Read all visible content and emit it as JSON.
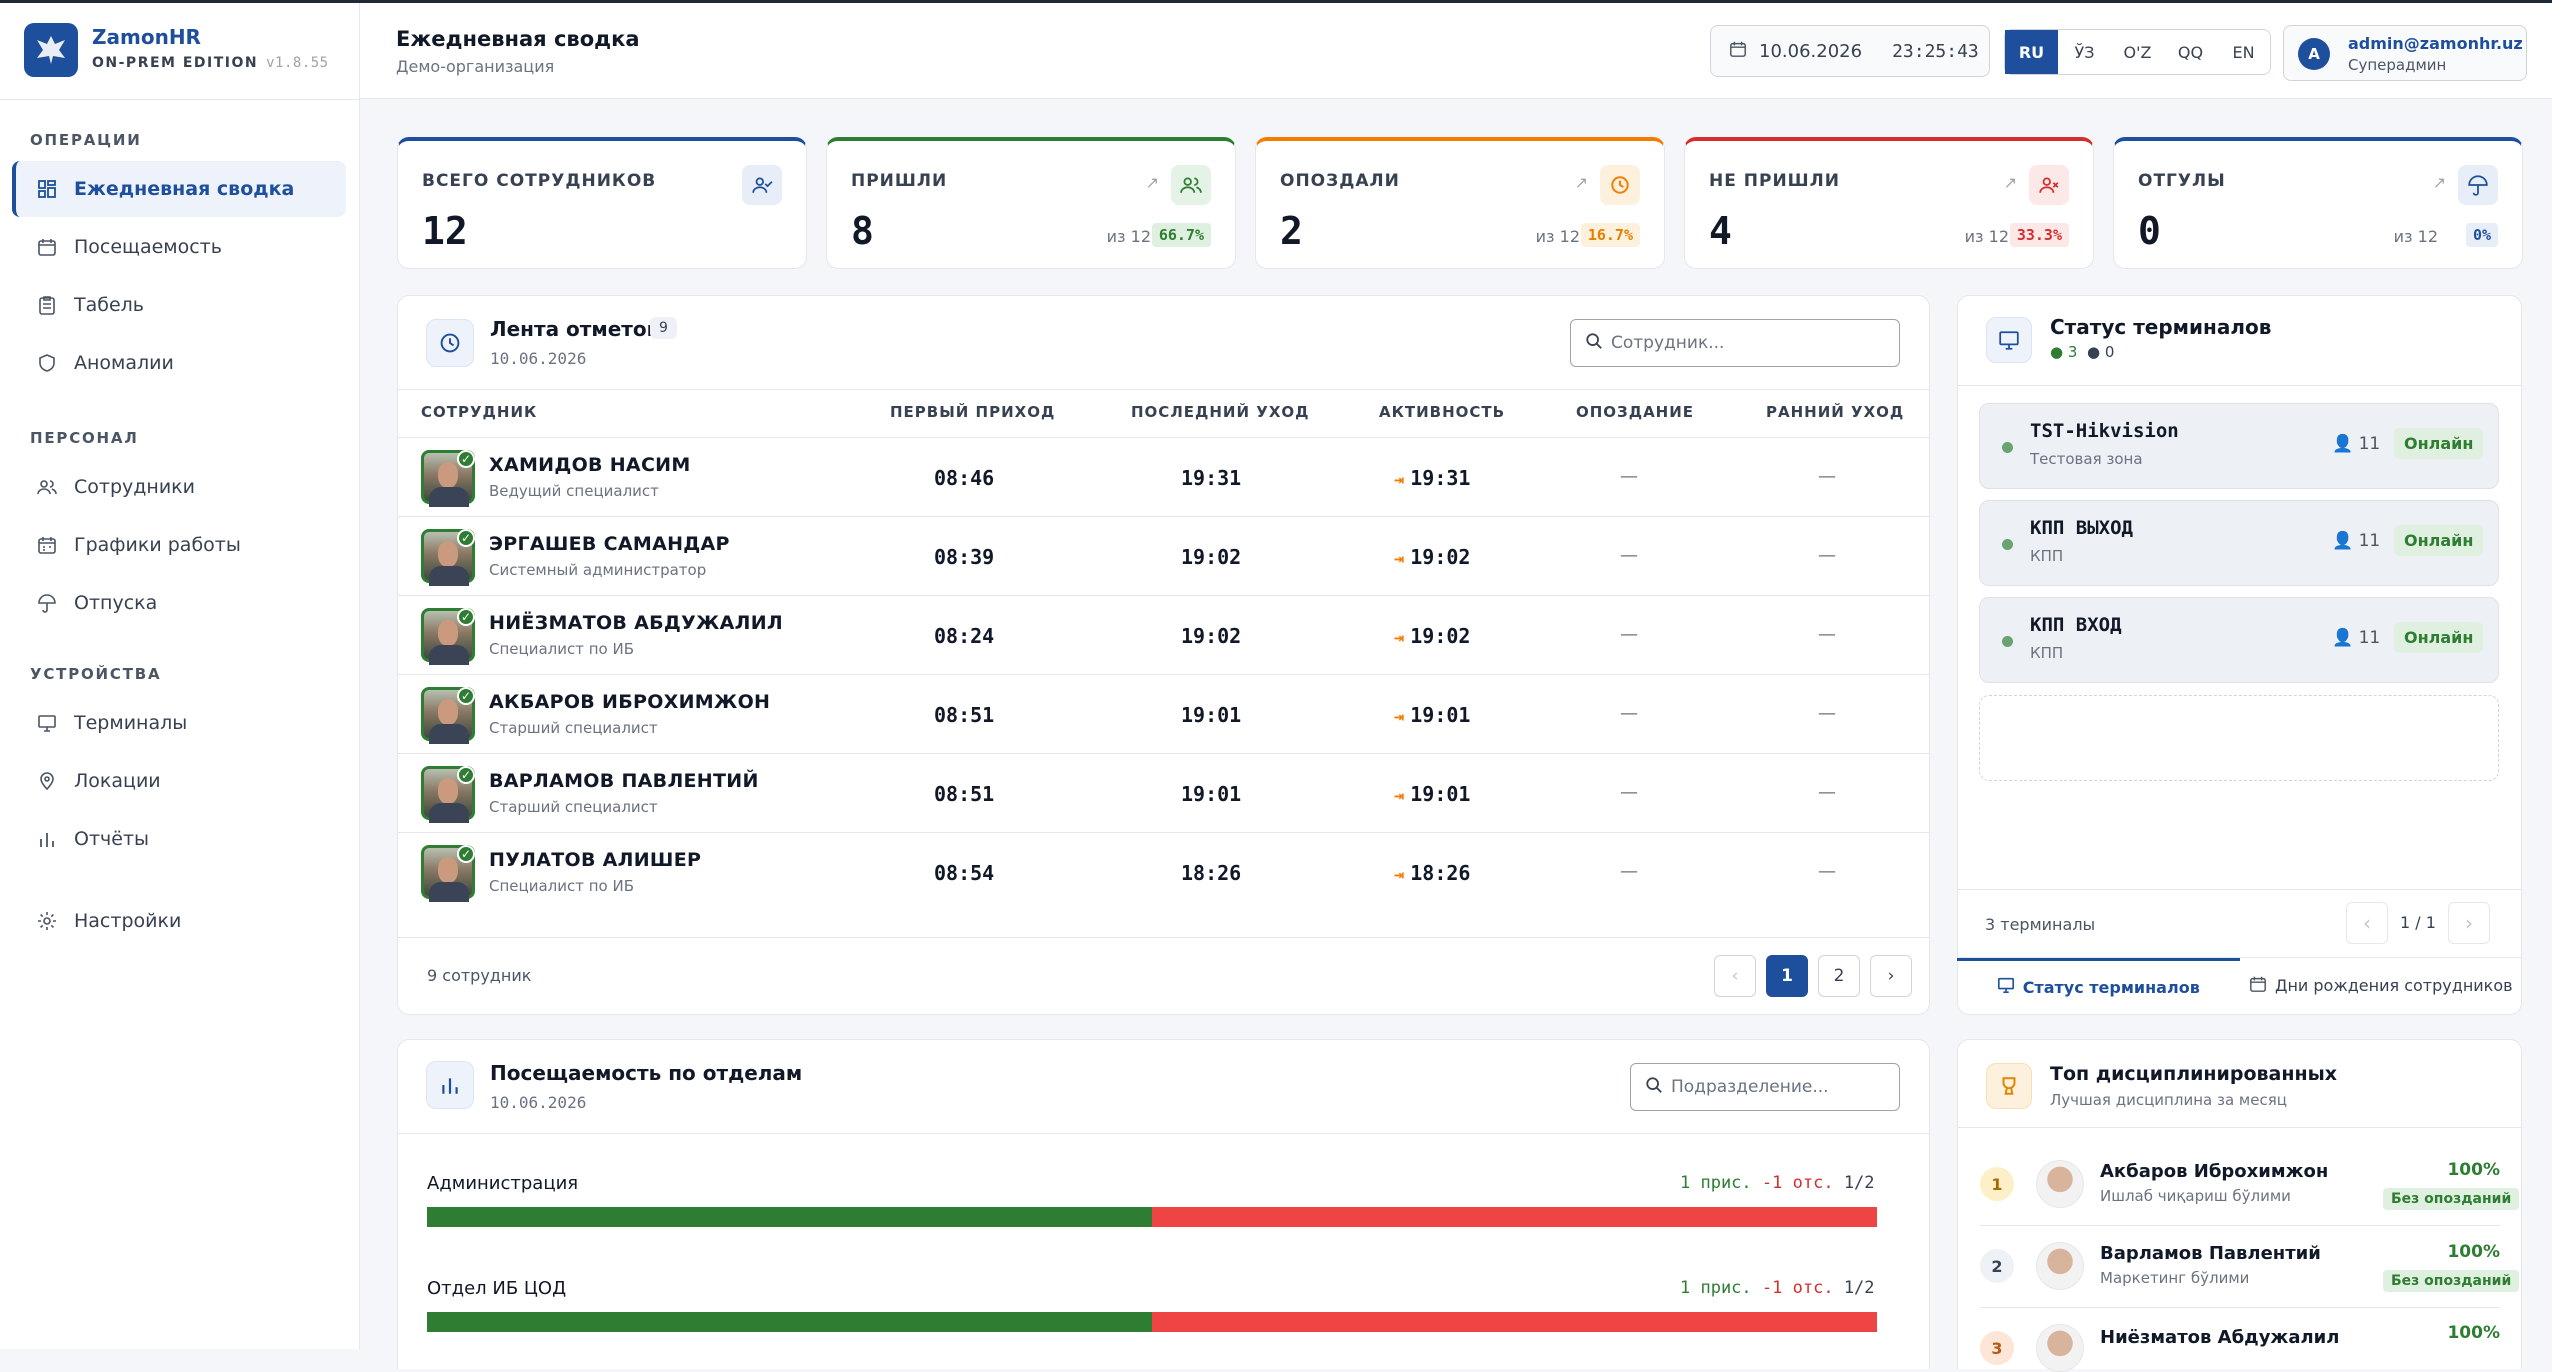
{
  "brand": {
    "name": "ZamonHR",
    "edition": "ON-PREM EDITION",
    "version": "v1.8.55"
  },
  "sidebar": {
    "sections": [
      {
        "title": "ОПЕРАЦИИ"
      },
      {
        "title": "ПЕРСОНАЛ"
      },
      {
        "title": "УСТРОЙСТВА"
      }
    ],
    "items": [
      {
        "label": "Ежедневная сводка",
        "icon": "grid-icon",
        "active": true
      },
      {
        "label": "Посещаемость",
        "icon": "calendar-icon"
      },
      {
        "label": "Табель",
        "icon": "clipboard-icon"
      },
      {
        "label": "Аномалии",
        "icon": "shield-icon"
      },
      {
        "label": "Сотрудники",
        "icon": "users-icon"
      },
      {
        "label": "Графики работы",
        "icon": "calendar-grid-icon"
      },
      {
        "label": "Отпуска",
        "icon": "umbrella-icon"
      },
      {
        "label": "Терминалы",
        "icon": "monitor-icon"
      },
      {
        "label": "Локации",
        "icon": "pin-icon"
      },
      {
        "label": "Отчёты",
        "icon": "bar-chart-icon"
      },
      {
        "label": "Настройки",
        "icon": "gear-icon"
      }
    ]
  },
  "header": {
    "title": "Ежедневная сводка",
    "subtitle": "Демо-организация",
    "date": "10.06.2026",
    "time": "23:25:43",
    "languages": [
      "RU",
      "ЎЗ",
      "O'Z",
      "QQ",
      "EN"
    ],
    "active_language": "RU",
    "user_initial": "A",
    "user_email": "admin@zamonhr.uz",
    "user_role": "Суперадмин"
  },
  "stats": [
    {
      "label": "ВСЕГО СОТРУДНИКОВ",
      "value": "12",
      "color": "#1e4f9c",
      "icon": "user-check-icon"
    },
    {
      "label": "ПРИШЛИ",
      "value": "8",
      "of": "из 12",
      "pct": "66.7%",
      "color": "#2e7d32",
      "icon": "users-icon"
    },
    {
      "label": "ОПОЗДАЛИ",
      "value": "2",
      "of": "из 12",
      "pct": "16.7%",
      "color": "#f57c00",
      "icon": "clock-icon"
    },
    {
      "label": "НЕ ПРИШЛИ",
      "value": "4",
      "of": "из 12",
      "pct": "33.3%",
      "color": "#d32f2f",
      "icon": "user-x-icon"
    },
    {
      "label": "ОТГУЛЫ",
      "value": "0",
      "of": "из 12",
      "pct": "0%",
      "color": "#1e4f9c",
      "icon": "umbrella-icon"
    }
  ],
  "feed": {
    "title": "Лента отметок",
    "count": "9",
    "date": "10.06.2026",
    "search_placeholder": "Сотрудник...",
    "columns": [
      "СОТРУДНИК",
      "ПЕРВЫЙ ПРИХОД",
      "ПОСЛЕДНИЙ УХОД",
      "АКТИВНОСТЬ",
      "ОПОЗДАНИЕ",
      "РАННИЙ УХОД"
    ],
    "rows": [
      {
        "name": "ХАМИДОВ НАСИМ",
        "position": "Ведущий специалист",
        "first_in": "08:46",
        "last_out": "19:31",
        "activity": "19:31",
        "late": "—",
        "early": "—"
      },
      {
        "name": "ЭРГАШЕВ САМАНДАР",
        "position": "Системный администратор",
        "first_in": "08:39",
        "last_out": "19:02",
        "activity": "19:02",
        "late": "—",
        "early": "—"
      },
      {
        "name": "НИЁЗМАТОВ АБДУЖАЛИЛ",
        "position": "Специалист по ИБ",
        "first_in": "08:24",
        "last_out": "19:02",
        "activity": "19:02",
        "late": "—",
        "early": "—"
      },
      {
        "name": "АКБАРОВ ИБРОХИМЖОН",
        "position": "Старший специалист",
        "first_in": "08:51",
        "last_out": "19:01",
        "activity": "19:01",
        "late": "—",
        "early": "—"
      },
      {
        "name": "ВАРЛАМОВ ПАВЛЕНТИЙ",
        "position": "Старший специалист",
        "first_in": "08:51",
        "last_out": "19:01",
        "activity": "19:01",
        "late": "—",
        "early": "—"
      },
      {
        "name": "ПУЛАТОВ АЛИШЕР",
        "position": "Специалист по ИБ",
        "first_in": "08:54",
        "last_out": "18:26",
        "activity": "18:26",
        "late": "—",
        "early": "—"
      }
    ],
    "footer": "9 сотрудник",
    "pages": [
      "‹",
      "1",
      "2",
      "›"
    ]
  },
  "terminals": {
    "title": "Статус терминалов",
    "online_count": "3",
    "offline_count": "0",
    "items": [
      {
        "name": "TST-Hikvision",
        "zone": "Тестовая зона",
        "users": "11",
        "status": "Онлайн"
      },
      {
        "name": "КПП ВЫХОД",
        "zone": "КПП",
        "users": "11",
        "status": "Онлайн"
      },
      {
        "name": "КПП ВХОД",
        "zone": "КПП",
        "users": "11",
        "status": "Онлайн"
      }
    ],
    "footer": "3 терминалы",
    "page": "1 / 1",
    "prev": "‹",
    "next": "›",
    "tabs": [
      "Статус терминалов",
      "Дни рождения сотрудников"
    ]
  },
  "departments": {
    "title": "Посещаемость по отделам",
    "date": "10.06.2026",
    "search_placeholder": "Подразделение...",
    "items": [
      {
        "name": "Администрация",
        "present": "1 прис.",
        "absent": "-1 отс.",
        "ratio": "1/2",
        "fraction": 0.5
      },
      {
        "name": "Отдел ИБ ЦОД",
        "present": "1 прис.",
        "absent": "-1 отс.",
        "ratio": "1/2",
        "fraction": 0.5
      }
    ]
  },
  "top": {
    "title": "Топ дисциплинированных",
    "subtitle": "Лучшая дисциплина за месяц",
    "items": [
      {
        "rank": "1",
        "name": "Акбаров Иброхимжон",
        "dept": "Ишлаб чиқариш бўлими",
        "pct": "100%",
        "badge": "Без опозданий"
      },
      {
        "rank": "2",
        "name": "Варламов Павлентий",
        "dept": "Маркетинг бўлими",
        "pct": "100%",
        "badge": "Без опозданий"
      },
      {
        "rank": "3",
        "name": "Ниёзматов Абдужалил",
        "pct": "100%"
      }
    ]
  }
}
